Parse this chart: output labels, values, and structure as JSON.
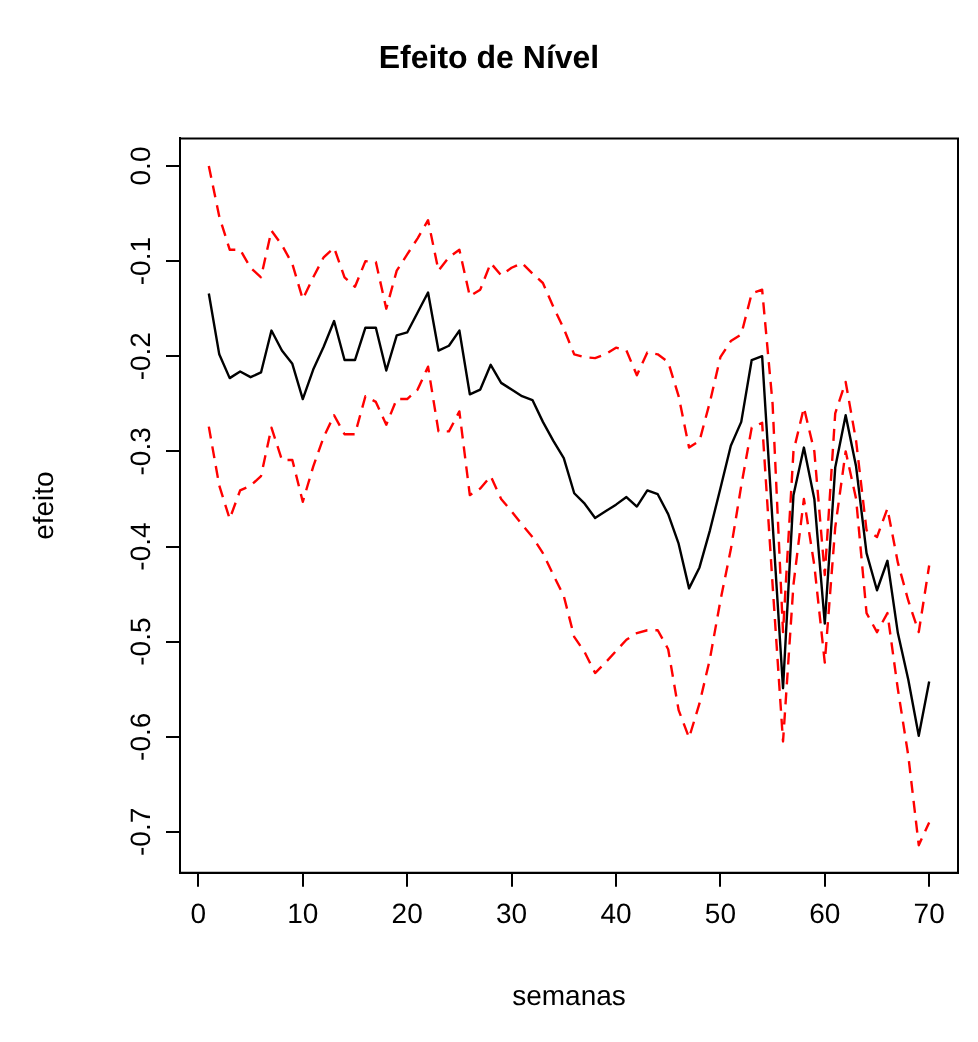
{
  "chart_data": {
    "type": "line",
    "title": "Efeito de Nível",
    "xlabel": "semanas",
    "ylabel": "efeito",
    "x": [
      1,
      2,
      3,
      4,
      5,
      6,
      7,
      8,
      9,
      10,
      11,
      12,
      13,
      14,
      15,
      16,
      17,
      18,
      19,
      20,
      21,
      22,
      23,
      24,
      25,
      26,
      27,
      28,
      29,
      30,
      31,
      32,
      33,
      34,
      35,
      36,
      37,
      38,
      39,
      40,
      41,
      42,
      43,
      44,
      45,
      46,
      47,
      48,
      49,
      50,
      51,
      52,
      53,
      54,
      55,
      56,
      57,
      58,
      59,
      60,
      61,
      62,
      63,
      64,
      65,
      66,
      67,
      68,
      69,
      70
    ],
    "series": [
      {
        "color": "#000000",
        "line_style": "solid",
        "values": [
          -0.134,
          -0.198,
          -0.223,
          -0.216,
          -0.222,
          -0.217,
          -0.173,
          -0.194,
          -0.208,
          -0.245,
          -0.214,
          -0.19,
          -0.163,
          -0.204,
          -0.204,
          -0.17,
          -0.17,
          -0.215,
          -0.178,
          -0.175,
          -0.154,
          -0.133,
          -0.194,
          -0.189,
          -0.173,
          -0.24,
          -0.235,
          -0.209,
          -0.228,
          -0.235,
          -0.242,
          -0.246,
          -0.269,
          -0.289,
          -0.307,
          -0.344,
          -0.355,
          -0.37,
          -0.363,
          -0.356,
          -0.348,
          -0.358,
          -0.341,
          -0.345,
          -0.366,
          -0.397,
          -0.444,
          -0.422,
          -0.383,
          -0.339,
          -0.294,
          -0.269,
          -0.204,
          -0.2,
          -0.375,
          -0.549,
          -0.346,
          -0.296,
          -0.35,
          -0.481,
          -0.317,
          -0.262,
          -0.316,
          -0.407,
          -0.446,
          -0.415,
          -0.491,
          -0.54,
          -0.599,
          -0.542
        ]
      },
      {
        "color": "#ff0000",
        "line_style": "dashed",
        "values": [
          0.0,
          -0.053,
          -0.088,
          -0.088,
          -0.107,
          -0.117,
          -0.068,
          -0.083,
          -0.103,
          -0.14,
          -0.117,
          -0.096,
          -0.086,
          -0.117,
          -0.127,
          -0.1,
          -0.101,
          -0.15,
          -0.11,
          -0.093,
          -0.076,
          -0.057,
          -0.11,
          -0.096,
          -0.088,
          -0.137,
          -0.13,
          -0.102,
          -0.115,
          -0.107,
          -0.102,
          -0.113,
          -0.123,
          -0.148,
          -0.171,
          -0.198,
          -0.201,
          -0.202,
          -0.198,
          -0.191,
          -0.194,
          -0.22,
          -0.196,
          -0.198,
          -0.206,
          -0.242,
          -0.296,
          -0.289,
          -0.248,
          -0.201,
          -0.184,
          -0.177,
          -0.134,
          -0.13,
          -0.25,
          -0.49,
          -0.3,
          -0.254,
          -0.3,
          -0.43,
          -0.26,
          -0.227,
          -0.289,
          -0.383,
          -0.39,
          -0.36,
          -0.417,
          -0.457,
          -0.49,
          -0.42
        ]
      },
      {
        "color": "#ff0000",
        "line_style": "dashed",
        "values": [
          -0.274,
          -0.336,
          -0.371,
          -0.341,
          -0.336,
          -0.326,
          -0.275,
          -0.309,
          -0.309,
          -0.353,
          -0.316,
          -0.285,
          -0.262,
          -0.282,
          -0.282,
          -0.242,
          -0.248,
          -0.272,
          -0.245,
          -0.245,
          -0.235,
          -0.211,
          -0.279,
          -0.279,
          -0.258,
          -0.346,
          -0.339,
          -0.326,
          -0.35,
          -0.363,
          -0.377,
          -0.39,
          -0.407,
          -0.43,
          -0.452,
          -0.495,
          -0.511,
          -0.533,
          -0.522,
          -0.51,
          -0.498,
          -0.491,
          -0.488,
          -0.488,
          -0.508,
          -0.572,
          -0.601,
          -0.565,
          -0.518,
          -0.457,
          -0.403,
          -0.336,
          -0.275,
          -0.27,
          -0.44,
          -0.605,
          -0.44,
          -0.35,
          -0.42,
          -0.522,
          -0.38,
          -0.3,
          -0.35,
          -0.47,
          -0.49,
          -0.47,
          -0.55,
          -0.62,
          -0.714,
          -0.69
        ]
      }
    ],
    "xlim": [
      -1.76,
      72.76
    ],
    "xticks": [
      0,
      10,
      20,
      30,
      40,
      50,
      60,
      70
    ],
    "ylim": [
      -0.743,
      0.029
    ],
    "yticks": [
      {
        "value": 0,
        "label": "0.0"
      },
      -0.1,
      -0.2,
      -0.3,
      -0.4,
      -0.5,
      -0.6,
      -0.7
    ],
    "grid": false,
    "legend": false,
    "marker": "none"
  }
}
